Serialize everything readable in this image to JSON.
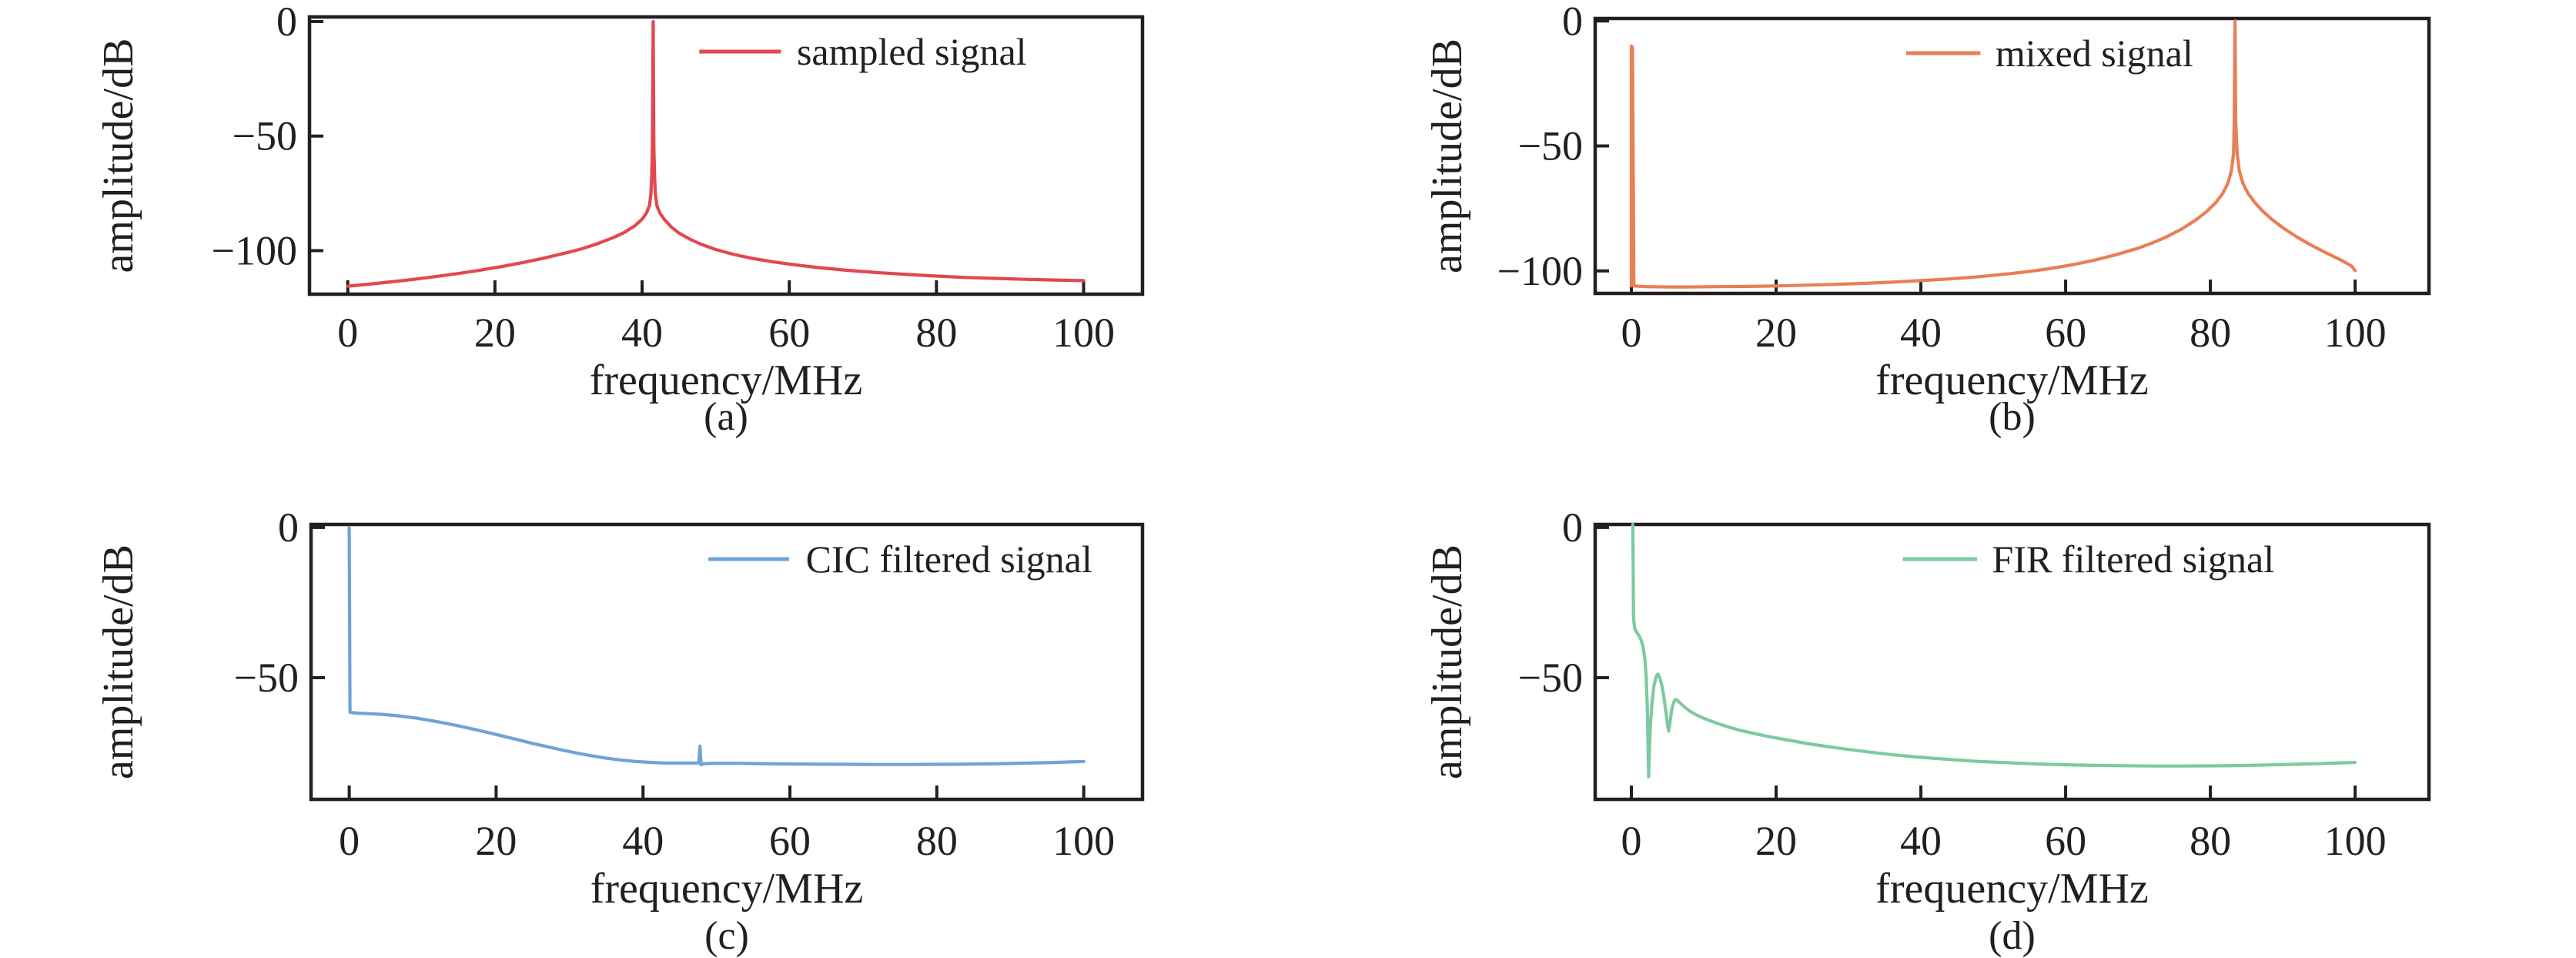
{
  "figure": {
    "background": "#ffffff",
    "text_color": "#231f20",
    "axis_color": "#231f20"
  },
  "chart_data": [
    {
      "type": "line",
      "panel": "a",
      "caption": "(a)",
      "legend": "sampled signal",
      "color": "#e2484f",
      "xlabel": "frequency/MHz",
      "ylabel": "amplitude/dB",
      "xlim": [
        -5.2,
        108
      ],
      "ylim": [
        2,
        -119
      ],
      "xticks": [
        0,
        20,
        40,
        60,
        80,
        100
      ],
      "yticks": [
        0,
        -50,
        -100
      ],
      "grid": false,
      "legend_position": "top-right-inside",
      "peak_frequency_mhz": 41.5,
      "points": [
        [
          0,
          -115.5
        ],
        [
          3,
          -114.6
        ],
        [
          6,
          -113.6
        ],
        [
          9,
          -112.5
        ],
        [
          12,
          -111.3
        ],
        [
          15,
          -110
        ],
        [
          18,
          -108.5
        ],
        [
          21,
          -106.9
        ],
        [
          24,
          -105.1
        ],
        [
          27,
          -103
        ],
        [
          30,
          -100.7
        ],
        [
          32,
          -99
        ],
        [
          34,
          -96.9
        ],
        [
          36,
          -94.4
        ],
        [
          37.5,
          -92.2
        ],
        [
          39,
          -89.2
        ],
        [
          40,
          -86.3
        ],
        [
          40.6,
          -83.5
        ],
        [
          41,
          -80.3
        ],
        [
          41.2,
          -75
        ],
        [
          41.3,
          -68
        ],
        [
          41.4,
          -55
        ],
        [
          41.5,
          0
        ],
        [
          41.6,
          -55
        ],
        [
          41.7,
          -68
        ],
        [
          41.8,
          -75
        ],
        [
          42,
          -80.3
        ],
        [
          42.4,
          -83.5
        ],
        [
          43,
          -86.3
        ],
        [
          44,
          -89.8
        ],
        [
          45,
          -92.3
        ],
        [
          46.5,
          -95
        ],
        [
          48,
          -97.2
        ],
        [
          50,
          -99.5
        ],
        [
          52.5,
          -101.7
        ],
        [
          55,
          -103.4
        ],
        [
          58,
          -105
        ],
        [
          61,
          -106.3
        ],
        [
          64,
          -107.4
        ],
        [
          68,
          -108.6
        ],
        [
          72,
          -109.6
        ],
        [
          76,
          -110.4
        ],
        [
          80,
          -111.1
        ],
        [
          84,
          -111.7
        ],
        [
          88,
          -112.1
        ],
        [
          92,
          -112.5
        ],
        [
          96,
          -112.8
        ],
        [
          100,
          -113.1
        ]
      ]
    },
    {
      "type": "line",
      "panel": "b",
      "caption": "(b)",
      "legend": "mixed signal",
      "color": "#e87f55",
      "xlabel": "frequency/MHz",
      "ylabel": "amplitude/dB",
      "xlim": [
        -5,
        110.2
      ],
      "ylim": [
        1,
        -109
      ],
      "xticks": [
        0,
        20,
        40,
        60,
        80,
        100
      ],
      "yticks": [
        0,
        -50,
        -100
      ],
      "grid": false,
      "legend_position": "top-right-inside",
      "peak_frequency_mhz": 83.4,
      "points": [
        [
          0,
          -106
        ],
        [
          0,
          -10
        ],
        [
          0.15,
          -10.5
        ],
        [
          0.35,
          -106
        ],
        [
          2,
          -106.3
        ],
        [
          5,
          -106.4
        ],
        [
          8,
          -106.4
        ],
        [
          12,
          -106.3
        ],
        [
          16,
          -106.2
        ],
        [
          20,
          -106
        ],
        [
          24,
          -105.7
        ],
        [
          28,
          -105.4
        ],
        [
          32,
          -105
        ],
        [
          36,
          -104.5
        ],
        [
          40,
          -103.9
        ],
        [
          44,
          -103.2
        ],
        [
          48,
          -102.3
        ],
        [
          52,
          -101.2
        ],
        [
          55,
          -100.2
        ],
        [
          58,
          -99
        ],
        [
          61,
          -97.5
        ],
        [
          64,
          -95.7
        ],
        [
          67,
          -93.5
        ],
        [
          70,
          -90.9
        ],
        [
          72,
          -88.8
        ],
        [
          74,
          -86.3
        ],
        [
          76,
          -83.3
        ],
        [
          78,
          -79.6
        ],
        [
          79.5,
          -76.2
        ],
        [
          80.8,
          -72.5
        ],
        [
          81.7,
          -69
        ],
        [
          82.4,
          -65
        ],
        [
          82.9,
          -60
        ],
        [
          83.2,
          -53
        ],
        [
          83.3,
          -40
        ],
        [
          83.4,
          0
        ],
        [
          83.5,
          -40
        ],
        [
          83.7,
          -53
        ],
        [
          84,
          -60
        ],
        [
          84.5,
          -65
        ],
        [
          85.2,
          -69
        ],
        [
          86.1,
          -72.5
        ],
        [
          87.2,
          -76
        ],
        [
          88.5,
          -79.4
        ],
        [
          90,
          -82.7
        ],
        [
          92,
          -86.5
        ],
        [
          94,
          -89.8
        ],
        [
          96,
          -92.8
        ],
        [
          98,
          -95.6
        ],
        [
          99.5,
          -98
        ],
        [
          100,
          -99.9
        ]
      ]
    },
    {
      "type": "line",
      "panel": "c",
      "caption": "(c)",
      "legend": "CIC filtered signal",
      "color": "#6fa3d6",
      "xlabel": "frequency/MHz",
      "ylabel": "amplitude/dB",
      "xlim": [
        -5.2,
        108
      ],
      "ylim": [
        1,
        -90.5
      ],
      "xticks": [
        0,
        20,
        40,
        60,
        80,
        100
      ],
      "yticks": [
        0,
        -50
      ],
      "grid": false,
      "legend_position": "top-right-inside",
      "points": [
        [
          0,
          0
        ],
        [
          0.1,
          -61.5
        ],
        [
          1,
          -61.8
        ],
        [
          3,
          -62
        ],
        [
          5,
          -62.3
        ],
        [
          7,
          -62.8
        ],
        [
          9,
          -63.4
        ],
        [
          11,
          -64.2
        ],
        [
          13,
          -65.1
        ],
        [
          15,
          -66.1
        ],
        [
          17,
          -67.2
        ],
        [
          19,
          -68.3
        ],
        [
          21,
          -69.5
        ],
        [
          23,
          -70.7
        ],
        [
          25,
          -71.9
        ],
        [
          27,
          -73
        ],
        [
          29,
          -74.1
        ],
        [
          31,
          -75.1
        ],
        [
          33,
          -76
        ],
        [
          35,
          -76.8
        ],
        [
          37,
          -77.4
        ],
        [
          39,
          -77.9
        ],
        [
          41,
          -78.2
        ],
        [
          43,
          -78.4
        ],
        [
          45,
          -78.4
        ],
        [
          47.6,
          -78.4
        ],
        [
          47.75,
          -72.8
        ],
        [
          47.9,
          -79
        ],
        [
          48.3,
          -78.6
        ],
        [
          50,
          -78.5
        ],
        [
          53,
          -78.5
        ],
        [
          56,
          -78.6
        ],
        [
          59,
          -78.7
        ],
        [
          62,
          -78.75
        ],
        [
          65,
          -78.8
        ],
        [
          68,
          -78.85
        ],
        [
          71,
          -78.9
        ],
        [
          74,
          -78.9
        ],
        [
          77,
          -78.9
        ],
        [
          80,
          -78.85
        ],
        [
          83,
          -78.8
        ],
        [
          86,
          -78.7
        ],
        [
          89,
          -78.6
        ],
        [
          92,
          -78.45
        ],
        [
          95,
          -78.3
        ],
        [
          97.5,
          -78.1
        ],
        [
          100,
          -77.9
        ]
      ]
    },
    {
      "type": "line",
      "panel": "d",
      "caption": "(d)",
      "legend": "FIR filtered signal",
      "color": "#7ec9a1",
      "xlabel": "frequency/MHz",
      "ylabel": "amplitude/dB",
      "xlim": [
        -5,
        110.2
      ],
      "ylim": [
        1,
        -90.5
      ],
      "xticks": [
        0,
        20,
        40,
        60,
        80,
        100
      ],
      "yticks": [
        0,
        -50
      ],
      "grid": false,
      "legend_position": "top-right-inside",
      "points": [
        [
          0.2,
          1
        ],
        [
          0.25,
          -15
        ],
        [
          0.3,
          -30
        ],
        [
          0.45,
          -33.5
        ],
        [
          0.7,
          -34.8
        ],
        [
          1,
          -35.8
        ],
        [
          1.3,
          -37.2
        ],
        [
          1.6,
          -39.5
        ],
        [
          1.85,
          -43.5
        ],
        [
          2.05,
          -50
        ],
        [
          2.2,
          -60
        ],
        [
          2.3,
          -72
        ],
        [
          2.38,
          -83
        ],
        [
          2.5,
          -74
        ],
        [
          2.65,
          -65
        ],
        [
          2.85,
          -58.5
        ],
        [
          3.1,
          -53
        ],
        [
          3.4,
          -49.8
        ],
        [
          3.65,
          -48.8
        ],
        [
          3.9,
          -49.8
        ],
        [
          4.2,
          -52.5
        ],
        [
          4.5,
          -56.5
        ],
        [
          4.8,
          -62
        ],
        [
          5,
          -65.8
        ],
        [
          5.15,
          -67.8
        ],
        [
          5.3,
          -65.5
        ],
        [
          5.55,
          -61
        ],
        [
          5.8,
          -58.5
        ],
        [
          6.05,
          -57.3
        ],
        [
          6.35,
          -57.5
        ],
        [
          6.7,
          -58.3
        ],
        [
          7.2,
          -59.5
        ],
        [
          8,
          -61
        ],
        [
          9,
          -62.4
        ],
        [
          10,
          -63.5
        ],
        [
          11.5,
          -64.9
        ],
        [
          13,
          -66.1
        ],
        [
          15,
          -67.5
        ],
        [
          17,
          -68.6
        ],
        [
          19,
          -69.6
        ],
        [
          21,
          -70.5
        ],
        [
          24,
          -71.8
        ],
        [
          27,
          -72.9
        ],
        [
          30,
          -73.9
        ],
        [
          33,
          -74.8
        ],
        [
          36,
          -75.6
        ],
        [
          39,
          -76.3
        ],
        [
          42,
          -76.9
        ],
        [
          45,
          -77.4
        ],
        [
          48,
          -77.9
        ],
        [
          51,
          -78.2
        ],
        [
          54,
          -78.5
        ],
        [
          57,
          -78.8
        ],
        [
          60,
          -79
        ],
        [
          64,
          -79.2
        ],
        [
          68,
          -79.3
        ],
        [
          72,
          -79.4
        ],
        [
          76,
          -79.4
        ],
        [
          80,
          -79.35
        ],
        [
          84,
          -79.25
        ],
        [
          88,
          -79.05
        ],
        [
          92,
          -78.8
        ],
        [
          95,
          -78.6
        ],
        [
          98,
          -78.35
        ],
        [
          100,
          -78.2
        ]
      ]
    }
  ]
}
